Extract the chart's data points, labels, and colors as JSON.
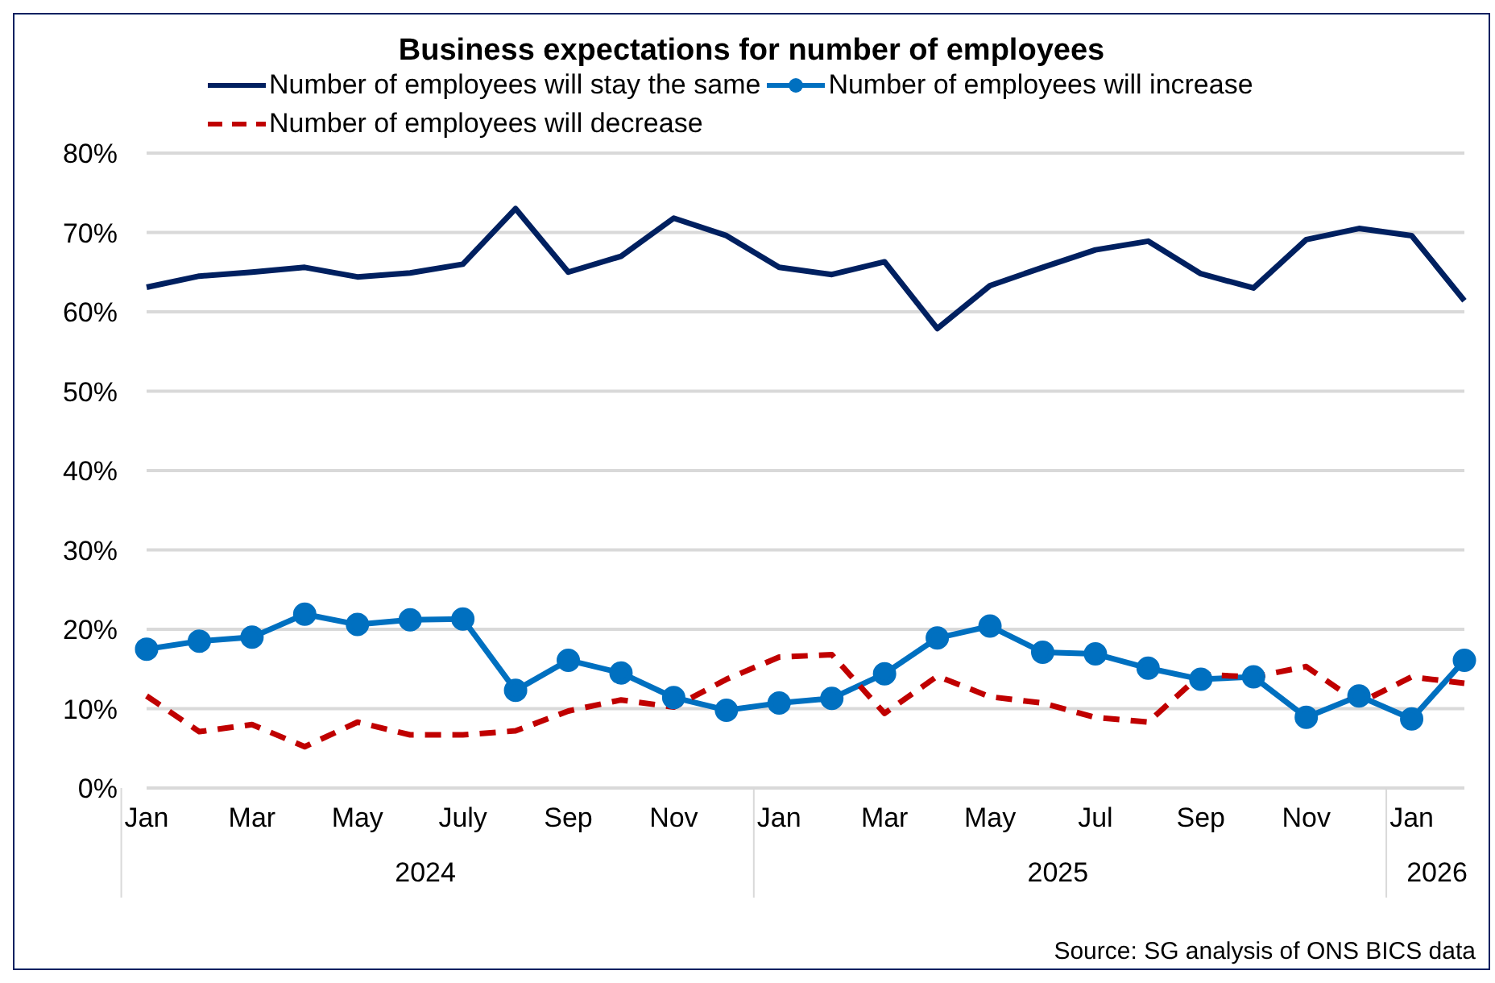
{
  "chart_data": {
    "type": "line",
    "title": "Business expectations for number of employees",
    "categories": [
      "Jan",
      null,
      "Mar",
      null,
      "May",
      null,
      "July",
      null,
      "Sep",
      null,
      "Nov",
      null,
      "Jan",
      null,
      "Mar",
      null,
      "May",
      null,
      "Jul",
      null,
      "Sep",
      null,
      "Nov",
      null,
      "Jan",
      null
    ],
    "series": [
      {
        "name": "Number of employees will stay the same",
        "color": "#002060",
        "marker": "none",
        "line_style": "solid",
        "values": [
          63.1,
          64.5,
          65,
          65.6,
          64.4,
          64.9,
          66,
          73,
          65,
          67,
          71.8,
          69.6,
          65.6,
          64.7,
          66.3,
          57.9,
          63.3,
          65.6,
          67.8,
          68.9,
          64.8,
          63,
          69.1,
          70.5,
          69.6,
          61.4
        ]
      },
      {
        "name": "Number of employees will increase",
        "color": "#0070c0",
        "marker": "circle",
        "line_style": "solid",
        "values": [
          17.5,
          18.5,
          19,
          21.9,
          20.6,
          21.2,
          21.3,
          12.3,
          16.1,
          14.5,
          11.4,
          9.8,
          10.7,
          11.3,
          14.4,
          18.9,
          20.4,
          17.1,
          16.9,
          15.1,
          13.7,
          14,
          8.9,
          11.6,
          8.7,
          16.1
        ]
      },
      {
        "name": "Number of employees will decrease",
        "color": "#c00000",
        "marker": "none",
        "line_style": "dashed",
        "values": [
          11.6,
          7.1,
          8,
          5.2,
          8.3,
          6.7,
          6.7,
          7.2,
          9.7,
          11.1,
          10.2,
          13.7,
          16.5,
          16.8,
          9.4,
          14.1,
          11.5,
          10.7,
          8.9,
          8.3,
          14.3,
          14,
          15.3,
          10.7,
          14,
          13.2
        ]
      }
    ],
    "ylim": [
      0,
      80
    ],
    "yticks": [
      {
        "value": 0,
        "label": "0%"
      },
      {
        "value": 10,
        "label": "10%"
      },
      {
        "value": 20,
        "label": "20%"
      },
      {
        "value": 30,
        "label": "30%"
      },
      {
        "value": 40,
        "label": "40%"
      },
      {
        "value": 50,
        "label": "50%"
      },
      {
        "value": 60,
        "label": "60%"
      },
      {
        "value": 70,
        "label": "70%"
      },
      {
        "value": 80,
        "label": "80%"
      }
    ],
    "grid": "y",
    "legend": "top",
    "annotations": [
      "2024",
      "2025",
      "2026",
      "Source: SG analysis of ONS BICS data"
    ]
  }
}
